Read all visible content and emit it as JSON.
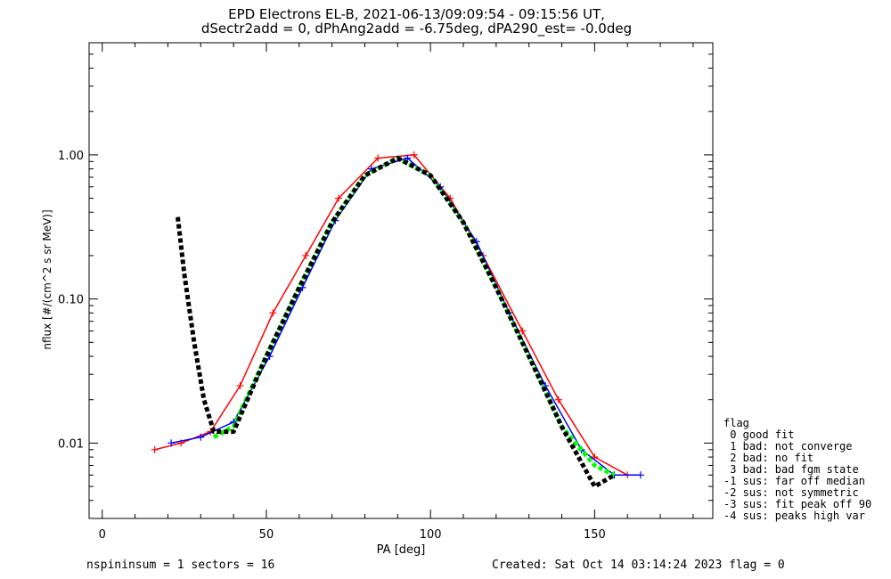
{
  "chart_data": {
    "type": "line",
    "title": "EPD Electrons EL-B, 2021-06-13/09:09:54 - 09:15:56 UT,",
    "subtitle": "dSectr2add = 0, dPhAng2add = -6.75deg, dPA290_est=  -0.0deg",
    "xlabel": "PA [deg]",
    "ylabel": "nflux [#/(cm^2 s sr MeV)]",
    "xlim": [
      -4,
      186
    ],
    "ylim": [
      0.003,
      6.0
    ],
    "yscale": "log",
    "xticks": [
      "0",
      "50",
      "100",
      "150"
    ],
    "yticks": [
      "0.01",
      "0.10",
      "1.00"
    ],
    "series": [
      {
        "color": "#ff0000",
        "x": [
          16,
          24,
          33,
          42,
          52,
          62,
          72,
          84,
          95,
          106,
          116,
          128,
          139,
          150,
          160
        ],
        "y": [
          0.009,
          0.01,
          0.012,
          0.025,
          0.08,
          0.2,
          0.5,
          0.95,
          1.0,
          0.5,
          0.2,
          0.06,
          0.02,
          0.008,
          0.006
        ]
      },
      {
        "color": "#0000ff",
        "x": [
          21,
          30,
          40,
          51,
          61,
          71,
          82,
          93,
          103,
          114,
          124,
          135,
          146,
          156,
          164
        ],
        "y": [
          0.01,
          0.011,
          0.014,
          0.04,
          0.12,
          0.35,
          0.8,
          0.95,
          0.6,
          0.25,
          0.08,
          0.025,
          0.009,
          0.006,
          0.006
        ]
      },
      {
        "color": "#00ff00",
        "x": [
          34,
          40,
          50,
          60,
          70,
          80,
          90,
          100,
          110,
          120,
          130,
          140,
          150,
          156
        ],
        "y": [
          0.011,
          0.013,
          0.04,
          0.12,
          0.34,
          0.72,
          0.95,
          0.72,
          0.34,
          0.12,
          0.04,
          0.013,
          0.007,
          0.006
        ]
      },
      {
        "color": "#000000",
        "x": [
          23,
          25,
          28,
          31,
          34,
          40,
          50,
          60,
          70,
          80,
          90,
          100,
          110,
          120,
          130,
          140,
          150,
          156
        ],
        "y": [
          0.37,
          0.15,
          0.05,
          0.02,
          0.012,
          0.012,
          0.04,
          0.12,
          0.34,
          0.72,
          0.95,
          0.72,
          0.34,
          0.12,
          0.04,
          0.013,
          0.005,
          0.006
        ]
      }
    ]
  },
  "legend": {
    "lines": [
      "flag",
      " 0 good fit",
      " 1 bad: not converge",
      " 2 bad: no fit",
      " 3 bad: bad fgm state",
      "-1 sus: far off median",
      "-2 sus: not symmetric",
      "-3 sus: fit peak off 90",
      "-4 sus: peaks high var"
    ]
  },
  "footer": {
    "left": "nspininsum =  1  sectors = 16",
    "right": "Created: Sat Oct 14 03:14:24 2023   flag = 0"
  }
}
